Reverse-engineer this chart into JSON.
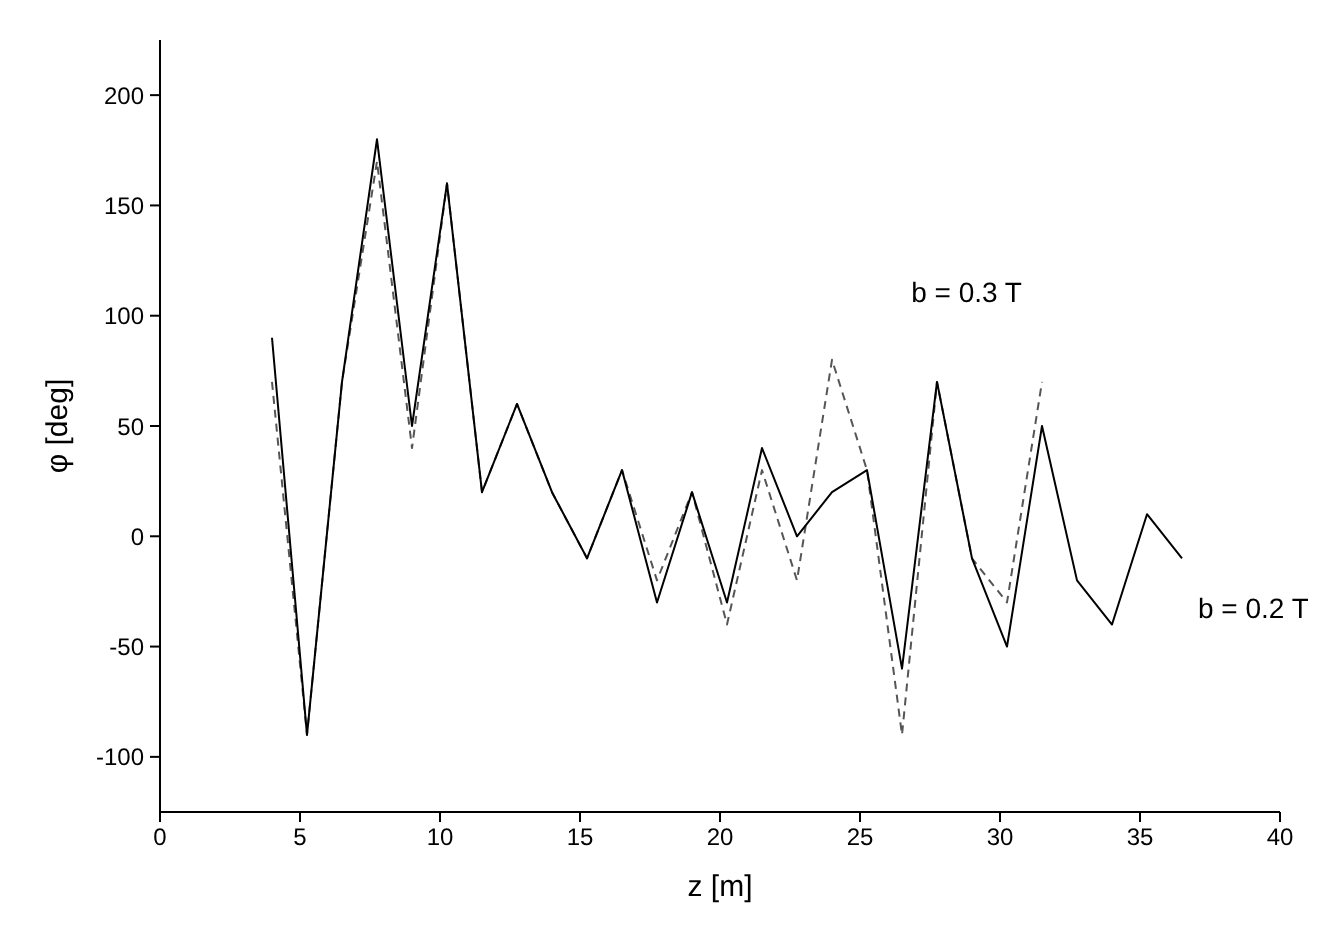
{
  "chart_data": {
    "type": "line",
    "xlabel": "z  [m]",
    "ylabel": "φ  [deg]",
    "xlim": [
      0,
      40
    ],
    "xticks": [
      0,
      5,
      10,
      15,
      20,
      25,
      30,
      35,
      40
    ],
    "ylim": [
      -125,
      225
    ],
    "yticks": [
      -100,
      -50,
      0,
      50,
      100,
      150,
      200
    ],
    "x": [
      4,
      5.25,
      6.5,
      7.75,
      9,
      10.25,
      11.5,
      12.75,
      14,
      15.25,
      16.5,
      17.75,
      19,
      20.25,
      21.5,
      22.75,
      24,
      25.25,
      26.5,
      27.75,
      29,
      30.25,
      31.5,
      32.75,
      34,
      35.25,
      36.5
    ],
    "series": [
      {
        "name": "b = 0.3 T",
        "color": "#555555",
        "line_style": "dashed",
        "values": [
          70,
          -90,
          70,
          170,
          40,
          160,
          20,
          60,
          20,
          -10,
          30,
          -20,
          20,
          -40,
          30,
          -20,
          80,
          30,
          -90,
          70,
          -10,
          -30,
          70,
          null,
          null,
          null,
          null
        ]
      },
      {
        "name": "b = 0.2 T",
        "color": "#000000",
        "line_style": "solid",
        "values": [
          90,
          -90,
          70,
          180,
          50,
          160,
          20,
          60,
          20,
          -10,
          30,
          -30,
          20,
          -30,
          40,
          0,
          20,
          30,
          -60,
          70,
          -10,
          -50,
          50,
          -20,
          -40,
          10,
          -10
        ]
      }
    ],
    "grid": false,
    "legend": false,
    "marker": "none"
  }
}
